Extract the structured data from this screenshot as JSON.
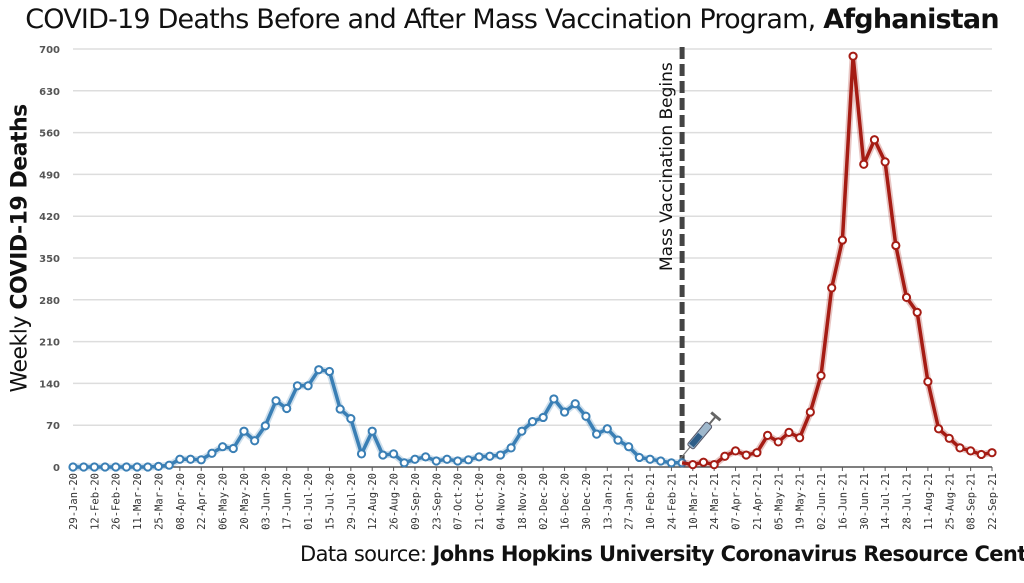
{
  "chart_data": {
    "type": "line",
    "title": "COVID-19 Deaths Before and After Mass Vaccination Program,",
    "title_bold": "Afghanistan",
    "ylabel_prefix": "Weekly",
    "ylabel_bold": "COVID-19 Deaths",
    "xlabel": "",
    "ylim": [
      0,
      700
    ],
    "yticks": [
      "0",
      "70",
      "140",
      "210",
      "280",
      "350",
      "420",
      "490",
      "560",
      "630",
      "700"
    ],
    "grid": true,
    "annotation": "Mass Vaccination Begins",
    "annotation_date": "03-Mar-21",
    "source_prefix": "Data source:",
    "source_bold": "Johns Hopkins University Coronavirus Resource Center",
    "tick_labels": [
      "29-Jan-20",
      "12-Feb-20",
      "26-Feb-20",
      "11-Mar-20",
      "25-Mar-20",
      "08-Apr-20",
      "22-Apr-20",
      "06-May-20",
      "20-May-20",
      "03-Jun-20",
      "17-Jun-20",
      "01-Jul-20",
      "15-Jul-20",
      "29-Jul-20",
      "12-Aug-20",
      "26-Aug-20",
      "09-Sep-20",
      "23-Sep-20",
      "07-Oct-20",
      "21-Oct-20",
      "04-Nov-20",
      "18-Nov-20",
      "02-Dec-20",
      "16-Dec-20",
      "30-Dec-20",
      "13-Jan-21",
      "27-Jan-21",
      "10-Feb-21",
      "24-Feb-21",
      "10-Mar-21",
      "24-Mar-21",
      "07-Apr-21",
      "21-Apr-21",
      "05-May-21",
      "19-May-21",
      "02-Jun-21",
      "16-Jun-21",
      "30-Jun-21",
      "14-Jul-21",
      "28-Jul-21",
      "11-Aug-21",
      "25-Aug-21",
      "08-Sep-21",
      "22-Sep-21"
    ],
    "series": [
      {
        "color": "#3a7fb5",
        "start": "29-Jan-20",
        "interval": "weekly",
        "values": [
          0,
          0,
          0,
          0,
          0,
          0,
          0,
          0,
          1,
          3,
          13,
          13,
          12,
          23,
          34,
          31,
          60,
          44,
          69,
          111,
          98,
          136,
          136,
          163,
          160,
          97,
          81,
          22,
          60,
          20,
          22,
          7,
          13,
          17,
          10,
          13,
          10,
          12,
          17,
          18,
          20,
          32,
          60,
          76,
          83,
          114,
          92,
          106,
          85,
          55,
          64,
          45,
          34,
          16,
          13,
          10,
          7,
          7
        ]
      },
      {
        "color": "#a51c14",
        "start": "10-Mar-21",
        "interval": "weekly",
        "values": [
          4,
          8,
          4,
          18,
          27,
          20,
          24,
          53,
          42,
          58,
          49,
          92,
          153,
          300,
          380,
          688,
          507,
          548,
          511,
          371,
          284,
          259,
          143,
          64,
          48,
          32,
          27,
          21,
          24
        ]
      }
    ]
  }
}
